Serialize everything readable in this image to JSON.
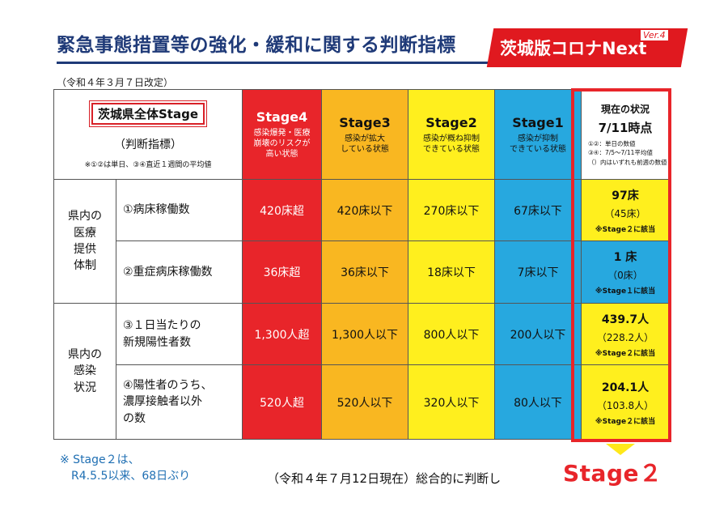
{
  "header": {
    "title": "緊急事態措置等の強化・緩和に関する判断指標",
    "logo_text": "茨城版コロナNext",
    "logo_version": "Ver.4",
    "revision": "（令和４年３月７日改定）"
  },
  "table": {
    "corner_badge": "茨城県全体Stage",
    "corner_sub": "（判断指標）",
    "corner_note": "※①②は単日、③④直近１週間の平均値",
    "stages": [
      {
        "name": "Stage4",
        "desc": "感染爆発・医療\n崩壊のリスクが\n高い状態",
        "color": "#e8252a"
      },
      {
        "name": "Stage3",
        "desc": "感染が拡大\nしている状態",
        "color": "#f9b721"
      },
      {
        "name": "Stage2",
        "desc": "感染が概ね抑制\nできている状態",
        "color": "#ffef1e"
      },
      {
        "name": "Stage1",
        "desc": "感染が抑制\nできている状態",
        "color": "#27a8df"
      }
    ],
    "current_header": {
      "title": "現在の状況",
      "date": "7/11時点",
      "note1": "①②：単日の数値",
      "note2": "③④：7/5～7/11平均値",
      "note3": "（）内はいずれも前週の数値"
    },
    "groups": [
      {
        "label": "県内の\n医療\n提供\n体制"
      },
      {
        "label": "県内の\n感染\n状況"
      }
    ],
    "rows": [
      {
        "indicator": "①病床稼働数",
        "values": [
          "420床超",
          "420床以下",
          "270床以下",
          "67床以下"
        ],
        "current": {
          "value": "97床",
          "prev": "（45床）",
          "stage": "※Stage２に該当"
        }
      },
      {
        "indicator": "②重症病床稼働数",
        "values": [
          "36床超",
          "36床以下",
          "18床以下",
          "7床以下"
        ],
        "current": {
          "value": "1 床",
          "prev": "（0床）",
          "stage": "※Stage１に該当"
        }
      },
      {
        "indicator": "③１日当たりの\n新規陽性者数",
        "values": [
          "1,300人超",
          "1,300人以下",
          "800人以下",
          "200人以下"
        ],
        "current": {
          "value": "439.7人",
          "prev": "（228.2人）",
          "stage": "※Stage２に該当"
        }
      },
      {
        "indicator": "④陽性者のうち、\n濃厚接触者以外\nの数",
        "values": [
          "520人超",
          "520人以下",
          "320人以下",
          "80人以下"
        ],
        "current": {
          "value": "204.1人",
          "prev": "（103.8人）",
          "stage": "※Stage２に該当"
        }
      }
    ]
  },
  "footer": {
    "note": "※ Stage２は、\n　R4.5.5以来、68日ぶり",
    "conclusion": "（令和４年７月12日現在）総合的に判断し",
    "final_stage": "Stage２"
  },
  "colors": {
    "title_blue": "#1f3a78",
    "brand_red": "#e0191f",
    "stage4_red": "#e8252a",
    "stage3_orange": "#f9b721",
    "stage2_yellow": "#ffef1e",
    "stage1_blue": "#27a8df",
    "footnote_blue": "#1f6fb3"
  }
}
